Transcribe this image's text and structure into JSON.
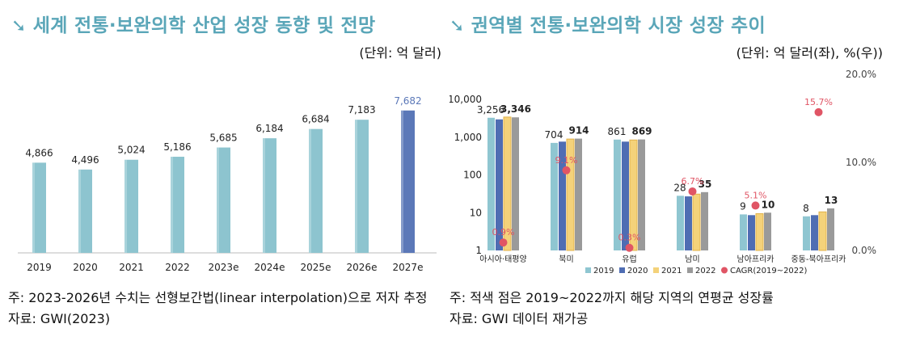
{
  "left": {
    "title": "세계 전통·보완의학 산업 성장 동향 및 전망",
    "unit": "(단위: 억 달러)",
    "note": "주: 2023-2026년 수치는 선형보간법(linear interpolation)으로 저자 추정",
    "source": "자료: GWI(2023)"
  },
  "right": {
    "title": "권역별 전통·보완의학 시장 성장 추이",
    "unit": "(단위: 억 달러(좌), %(우))",
    "note": "주: 적색 점은 2019~2022까지 해당 지역의 연평균 성장률",
    "source": "자료: GWI 데이터 재가공"
  },
  "colors": {
    "title": "#5aa6b8",
    "bar_base": "#8dc4cf",
    "bar_highlight": "#5b78b8",
    "s2019": "#8fc6d1",
    "s2020": "#4f6db3",
    "s2021": "#f4d27a",
    "s2022": "#9a9a9a",
    "cagr": "#e05565"
  },
  "chart_data": [
    {
      "type": "bar",
      "title": "세계 전통·보완의학 산업 성장 동향 및 전망",
      "categories": [
        "2019",
        "2020",
        "2021",
        "2022",
        "2023e",
        "2024e",
        "2025e",
        "2026e",
        "2027e"
      ],
      "values": [
        4866,
        4496,
        5024,
        5186,
        5685,
        6184,
        6684,
        7183,
        7682
      ],
      "labels": [
        "4,866",
        "4,496",
        "5,024",
        "5,186",
        "5,685",
        "6,184",
        "6,684",
        "7,183",
        "7,682"
      ],
      "highlight_index": 8,
      "ylim": [
        0,
        8500
      ],
      "ylabel": "억 달러"
    },
    {
      "type": "bar",
      "title": "권역별 전통·보완의학 시장 성장 추이",
      "yscale": "log",
      "ylim": [
        1,
        10000
      ],
      "yticks": [
        "1",
        "10",
        "100",
        "1,000",
        "10,000"
      ],
      "y2ticks": [
        "0.0%",
        "10.0%",
        "20.0%"
      ],
      "y2lim": [
        0,
        20
      ],
      "categories": [
        "아시아·태평양",
        "북미",
        "유럽",
        "남미",
        "남아프리카",
        "중동-북아프리카"
      ],
      "series": [
        {
          "name": "2019",
          "values": [
            3256,
            704,
            861,
            28,
            9,
            8
          ]
        },
        {
          "name": "2020",
          "values": [
            2950,
            760,
            760,
            27,
            8.6,
            8.6
          ]
        },
        {
          "name": "2021",
          "values": [
            3400,
            890,
            840,
            31,
            9.4,
            10.5
          ]
        },
        {
          "name": "2022",
          "values": [
            3346,
            914,
            869,
            35,
            10,
            13
          ]
        }
      ],
      "bar_labels": [
        [
          "3,256",
          "3,346"
        ],
        [
          "704",
          "914"
        ],
        [
          "861",
          "869"
        ],
        [
          "28",
          "35"
        ],
        [
          "9",
          "10"
        ],
        [
          "8",
          "13"
        ]
      ],
      "cagr": {
        "name": "CAGR(2019~2022)",
        "values": [
          0.9,
          9.1,
          0.3,
          6.7,
          5.1,
          15.7
        ],
        "labels": [
          "0.9%",
          "9.1%",
          "0.3%",
          "6.7%",
          "5.1%",
          "15.7%"
        ]
      },
      "legend": [
        "2019",
        "2020",
        "2021",
        "2022",
        "CAGR(2019~2022)"
      ]
    }
  ]
}
